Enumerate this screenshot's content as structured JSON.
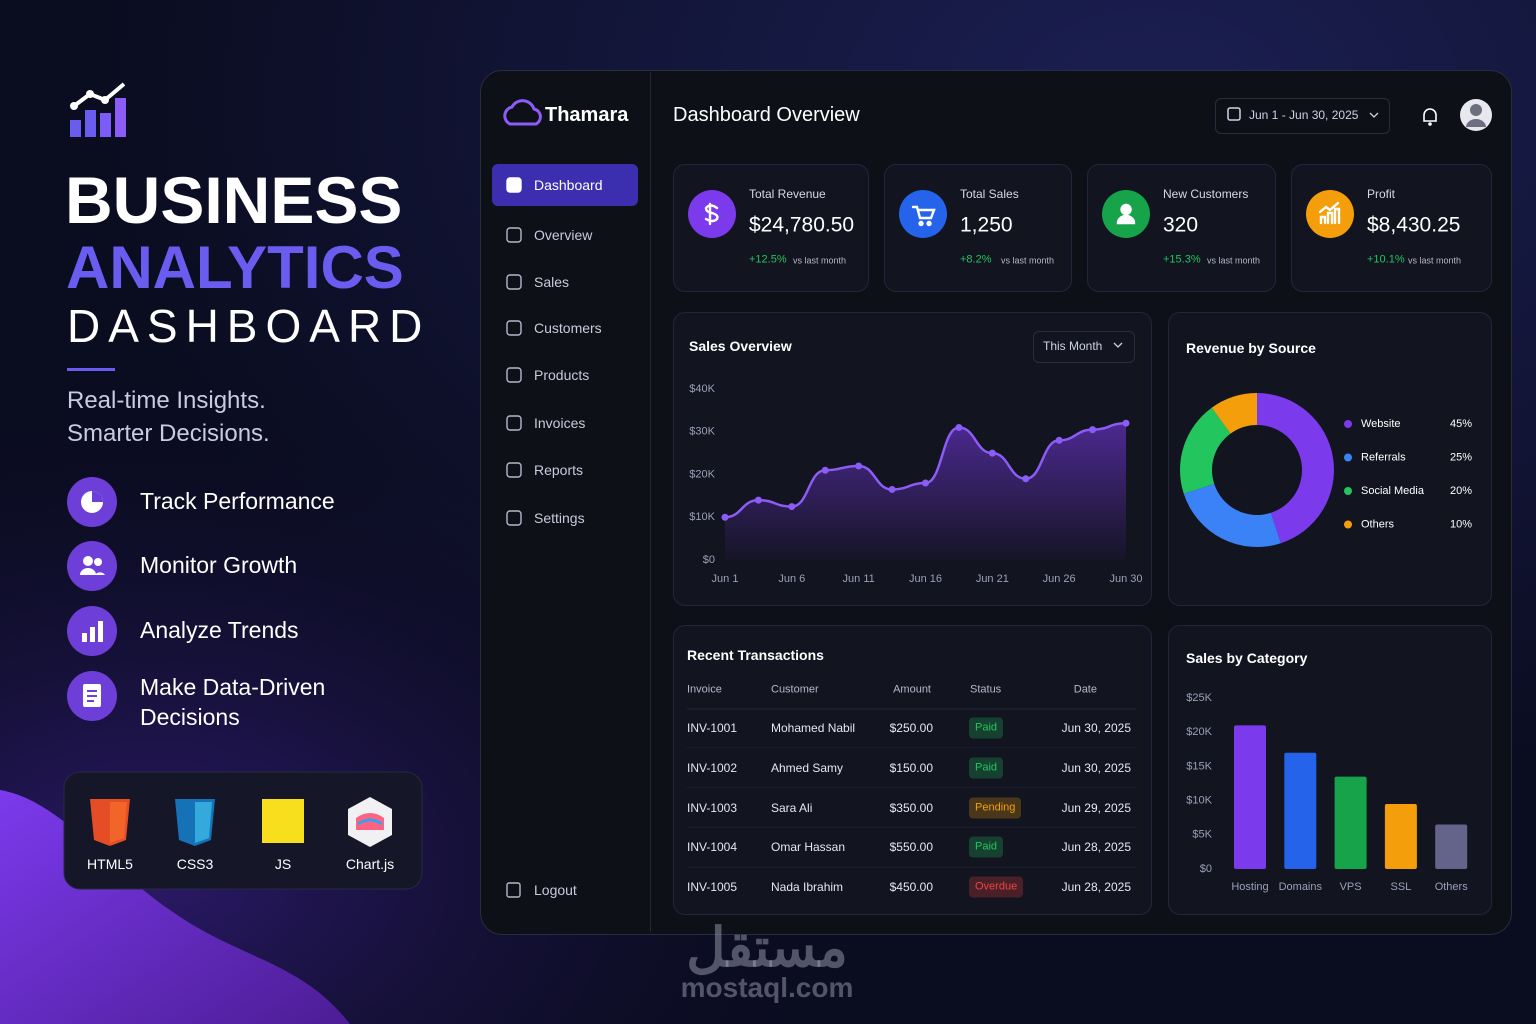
{
  "promo": {
    "title_line1": "BUSINESS",
    "title_line2": "ANALYTICS",
    "title_line3": "DASHBOARD",
    "tagline": [
      "Real-time Insights.",
      "Smarter Decisions."
    ],
    "features": [
      "Track Performance",
      "Monitor Growth",
      "Analyze Trends",
      "Make Data-Driven Decisions"
    ],
    "tech": [
      "HTML5",
      "CSS3",
      "JS",
      "Chart.js"
    ]
  },
  "dashboard": {
    "brand": "Thamara",
    "page_title": "Dashboard Overview",
    "date_range": "Jun 1 - Jun 30, 2025",
    "nav": [
      "Dashboard",
      "Overview",
      "Sales",
      "Customers",
      "Products",
      "Invoices",
      "Reports",
      "Settings"
    ],
    "logout": "Logout",
    "stats": [
      {
        "label": "Total Revenue",
        "value": "$24,780.50",
        "change": "+12.5%",
        "note": "vs last month",
        "color": "#7c3aed"
      },
      {
        "label": "Total Sales",
        "value": "1,250",
        "change": "+8.2%",
        "note": "vs last month",
        "color": "#2563eb"
      },
      {
        "label": "New Customers",
        "value": "320",
        "change": "+15.3%",
        "note": "vs last month",
        "color": "#16a34a"
      },
      {
        "label": "Profit",
        "value": "$8,430.25",
        "change": "+10.1%",
        "note": "vs last month",
        "color": "#f59e0b"
      }
    ],
    "sales_filter": "This Month",
    "transactions": {
      "title": "Recent Transactions",
      "columns": [
        "Invoice",
        "Customer",
        "Amount",
        "Status",
        "Date"
      ],
      "rows": [
        [
          "INV-1001",
          "Mohamed Nabil",
          "$250.00",
          "Paid",
          "Jun 30, 2025"
        ],
        [
          "INV-1002",
          "Ahmed Samy",
          "$150.00",
          "Paid",
          "Jun 30, 2025"
        ],
        [
          "INV-1003",
          "Sara Ali",
          "$350.00",
          "Pending",
          "Jun 29, 2025"
        ],
        [
          "INV-1004",
          "Omar Hassan",
          "$550.00",
          "Paid",
          "Jun 28, 2025"
        ],
        [
          "INV-1005",
          "Nada Ibrahim",
          "$450.00",
          "Overdue",
          "Jun 28, 2025"
        ]
      ],
      "status_colors": [
        "#22c55e",
        "#22c55e",
        "#f59e0b",
        "#22c55e",
        "#ef4444"
      ]
    }
  },
  "chart_data": [
    {
      "type": "line",
      "title": "Sales Overview",
      "categories": [
        "Jun 1",
        null,
        "Jun 6",
        null,
        "Jun 11",
        null,
        "Jun 16",
        null,
        "Jun 21",
        null,
        "Jun 26",
        null,
        "Jun 30"
      ],
      "values": [
        10000,
        14000,
        12500,
        21000,
        22000,
        16500,
        18000,
        31000,
        25000,
        19000,
        28000,
        30500,
        32000
      ],
      "color": "#8b5cf6",
      "ylim": [
        0,
        40000
      ],
      "yticks": [
        {
          "value": 0,
          "label": "$0"
        },
        {
          "value": 10000,
          "label": "$10K"
        },
        {
          "value": 20000,
          "label": "$20K"
        },
        {
          "value": 30000,
          "label": "$30K"
        },
        {
          "value": 40000,
          "label": "$40K"
        }
      ],
      "grid": false
    },
    {
      "type": "pie",
      "title": "Revenue by Source",
      "categories": [
        "Website",
        "Referrals",
        "Social Media",
        "Others"
      ],
      "values": [
        45,
        25,
        20,
        10
      ],
      "value_labels": [
        "45%",
        "25%",
        "20%",
        "10%"
      ],
      "colors": [
        "#7c3aed",
        "#3b82f6",
        "#22c55e",
        "#f59e0b"
      ]
    },
    {
      "type": "bar",
      "title": "Sales by Category",
      "categories": [
        "Hosting",
        "Domains",
        "VPS",
        "SSL",
        "Others"
      ],
      "values": [
        21000,
        17000,
        13500,
        9500,
        6500
      ],
      "colors": [
        "#7c3aed",
        "#2563eb",
        "#16a34a",
        "#f59e0b",
        "#64648a"
      ],
      "ylim": [
        0,
        25000
      ],
      "yticks": [
        {
          "value": 0,
          "label": "$0"
        },
        {
          "value": 5000,
          "label": "$5K"
        },
        {
          "value": 10000,
          "label": "$10K"
        },
        {
          "value": 15000,
          "label": "$15K"
        },
        {
          "value": 20000,
          "label": "$20K"
        },
        {
          "value": 25000,
          "label": "$25K"
        }
      ],
      "grid": false
    }
  ],
  "watermark": {
    "arabic": "مستقل",
    "latin": "mostaql.com"
  }
}
